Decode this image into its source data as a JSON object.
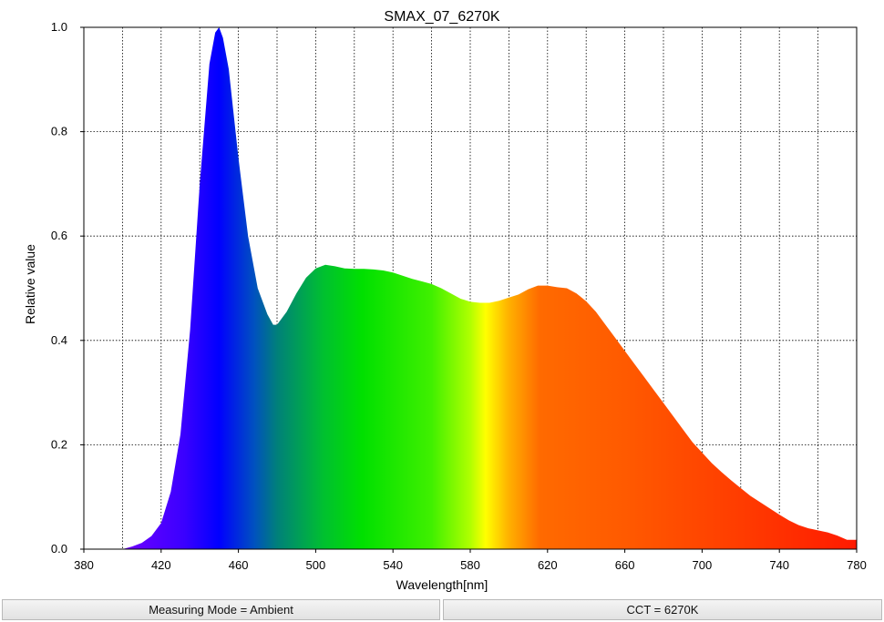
{
  "chart_data": {
    "type": "area",
    "title": "SMAX_07_6270K",
    "xlabel": "Wavelength[nm]",
    "ylabel": "Relative value",
    "xlim": [
      380,
      780
    ],
    "ylim": [
      0,
      1
    ],
    "x_ticks": [
      "380",
      "420",
      "460",
      "500",
      "540",
      "580",
      "620",
      "660",
      "700",
      "740",
      "780"
    ],
    "y_ticks": [
      "0.0",
      "0.2",
      "0.4",
      "0.6",
      "0.8",
      "1.0"
    ],
    "grid": true,
    "series": [
      {
        "x": [
          380,
          400,
          405,
          410,
          415,
          420,
          425,
          430,
          435,
          440,
          445,
          448,
          450,
          452,
          455,
          460,
          465,
          470,
          475,
          478,
          480,
          485,
          490,
          495,
          500,
          505,
          510,
          515,
          520,
          525,
          530,
          535,
          540,
          545,
          550,
          555,
          560,
          565,
          570,
          575,
          580,
          585,
          590,
          595,
          600,
          605,
          610,
          615,
          620,
          625,
          630,
          635,
          640,
          645,
          650,
          655,
          660,
          665,
          670,
          675,
          680,
          685,
          690,
          695,
          700,
          705,
          710,
          715,
          720,
          725,
          730,
          735,
          740,
          745,
          750,
          755,
          760,
          765,
          770,
          775,
          780
        ],
        "y": [
          0.0,
          0.0,
          0.005,
          0.012,
          0.025,
          0.05,
          0.11,
          0.22,
          0.42,
          0.7,
          0.93,
          0.99,
          1.0,
          0.98,
          0.92,
          0.75,
          0.6,
          0.5,
          0.45,
          0.43,
          0.43,
          0.455,
          0.49,
          0.52,
          0.538,
          0.545,
          0.542,
          0.538,
          0.537,
          0.537,
          0.536,
          0.534,
          0.53,
          0.524,
          0.518,
          0.513,
          0.508,
          0.5,
          0.49,
          0.48,
          0.474,
          0.472,
          0.472,
          0.476,
          0.482,
          0.488,
          0.498,
          0.505,
          0.505,
          0.502,
          0.5,
          0.49,
          0.475,
          0.455,
          0.43,
          0.405,
          0.38,
          0.355,
          0.33,
          0.305,
          0.28,
          0.255,
          0.23,
          0.205,
          0.185,
          0.165,
          0.148,
          0.132,
          0.117,
          0.102,
          0.09,
          0.078,
          0.066,
          0.055,
          0.046,
          0.04,
          0.036,
          0.032,
          0.026,
          0.018,
          0.018
        ]
      }
    ]
  },
  "footer": {
    "mode": "Measuring Mode = Ambient",
    "cct": "CCT = 6270K"
  }
}
